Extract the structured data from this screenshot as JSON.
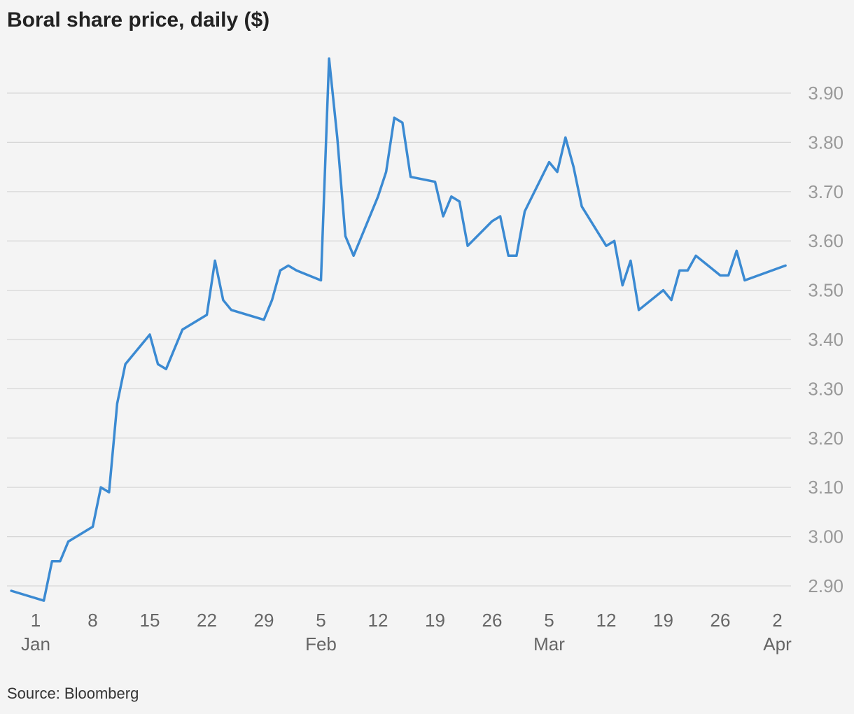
{
  "title": "Boral share price, daily ($)",
  "source": "Source: Bloomberg",
  "colors": {
    "line": "#3b8ad2",
    "grid": "#d6d6d6",
    "background": "#f4f4f4"
  },
  "chart_data": {
    "type": "line",
    "title": "Boral share price, daily ($)",
    "ylim": [
      2.85,
      3.98
    ],
    "xlim": [
      "2017-12-30",
      "2018-04-03"
    ],
    "grid": true,
    "y_axis_position": "right",
    "y_ticks": [
      "2.90",
      "3.00",
      "3.10",
      "3.20",
      "3.30",
      "3.40",
      "3.50",
      "3.60",
      "3.70",
      "3.80",
      "3.90"
    ],
    "x_ticks": [
      {
        "date": "2018-01-01",
        "label": "1",
        "month": "Jan"
      },
      {
        "date": "2018-01-08",
        "label": "8",
        "month": ""
      },
      {
        "date": "2018-01-15",
        "label": "15",
        "month": ""
      },
      {
        "date": "2018-01-22",
        "label": "22",
        "month": ""
      },
      {
        "date": "2018-01-29",
        "label": "29",
        "month": ""
      },
      {
        "date": "2018-02-05",
        "label": "5",
        "month": "Feb"
      },
      {
        "date": "2018-02-12",
        "label": "12",
        "month": ""
      },
      {
        "date": "2018-02-19",
        "label": "19",
        "month": ""
      },
      {
        "date": "2018-02-26",
        "label": "26",
        "month": ""
      },
      {
        "date": "2018-03-05",
        "label": "5",
        "month": "Mar"
      },
      {
        "date": "2018-03-12",
        "label": "12",
        "month": ""
      },
      {
        "date": "2018-03-19",
        "label": "19",
        "month": ""
      },
      {
        "date": "2018-03-26",
        "label": "26",
        "month": ""
      },
      {
        "date": "2018-04-02",
        "label": "2",
        "month": "Apr"
      }
    ],
    "series": [
      {
        "x": [
          "2017-12-29",
          "2018-01-02",
          "2018-01-03",
          "2018-01-04",
          "2018-01-05",
          "2018-01-08",
          "2018-01-09",
          "2018-01-10",
          "2018-01-11",
          "2018-01-12",
          "2018-01-15",
          "2018-01-16",
          "2018-01-17",
          "2018-01-18",
          "2018-01-19",
          "2018-01-22",
          "2018-01-23",
          "2018-01-24",
          "2018-01-25",
          "2018-01-29",
          "2018-01-30",
          "2018-01-31",
          "2018-02-01",
          "2018-02-02",
          "2018-02-05",
          "2018-02-06",
          "2018-02-07",
          "2018-02-08",
          "2018-02-09",
          "2018-02-12",
          "2018-02-13",
          "2018-02-14",
          "2018-02-15",
          "2018-02-16",
          "2018-02-19",
          "2018-02-20",
          "2018-02-21",
          "2018-02-22",
          "2018-02-23",
          "2018-02-26",
          "2018-02-27",
          "2018-02-28",
          "2018-03-01",
          "2018-03-02",
          "2018-03-05",
          "2018-03-06",
          "2018-03-07",
          "2018-03-08",
          "2018-03-09",
          "2018-03-12",
          "2018-03-13",
          "2018-03-14",
          "2018-03-15",
          "2018-03-16",
          "2018-03-19",
          "2018-03-20",
          "2018-03-21",
          "2018-03-22",
          "2018-03-23",
          "2018-03-26",
          "2018-03-27",
          "2018-03-28",
          "2018-03-29",
          "2018-04-03"
        ],
        "values": [
          2.89,
          2.87,
          2.95,
          2.95,
          2.99,
          3.02,
          3.1,
          3.09,
          3.27,
          3.35,
          3.41,
          3.35,
          3.34,
          3.38,
          3.42,
          3.45,
          3.56,
          3.48,
          3.46,
          3.44,
          3.48,
          3.54,
          3.55,
          3.54,
          3.52,
          3.97,
          3.81,
          3.61,
          3.57,
          3.69,
          3.74,
          3.85,
          3.84,
          3.73,
          3.72,
          3.65,
          3.69,
          3.68,
          3.59,
          3.64,
          3.65,
          3.57,
          3.57,
          3.66,
          3.76,
          3.74,
          3.81,
          3.75,
          3.67,
          3.59,
          3.6,
          3.51,
          3.56,
          3.46,
          3.5,
          3.48,
          3.54,
          3.54,
          3.57,
          3.53,
          3.53,
          3.58,
          3.52,
          3.55
        ]
      }
    ]
  }
}
